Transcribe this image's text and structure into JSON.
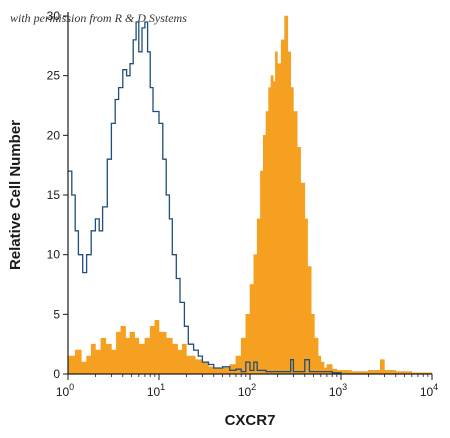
{
  "chart_data": {
    "type": "area",
    "title": "",
    "xlabel": "CXCR7",
    "ylabel": "Relative Cell Number",
    "xscale": "log",
    "xlim": [
      1,
      10000
    ],
    "ylim": [
      0,
      30
    ],
    "x_ticks": [
      {
        "value": 1,
        "base": "10",
        "exp": "0"
      },
      {
        "value": 10,
        "base": "10",
        "exp": "1"
      },
      {
        "value": 100,
        "base": "10",
        "exp": "2"
      },
      {
        "value": 1000,
        "base": "10",
        "exp": "3"
      },
      {
        "value": 10000,
        "base": "10",
        "exp": "4"
      }
    ],
    "y_ticks": [
      0,
      5,
      10,
      15,
      20,
      25,
      30
    ],
    "grid": false,
    "legend": "none",
    "annotation": "with permission from R & D Systems",
    "colors": {
      "filled_series": "#f5a020",
      "outline_series": "#1f4e79",
      "axis": "#1a1a1a"
    },
    "series": [
      {
        "style": "outline",
        "x": [
          1,
          1.1,
          1.2,
          1.3,
          1.45,
          1.6,
          1.8,
          2.0,
          2.2,
          2.4,
          2.7,
          3.0,
          3.3,
          3.6,
          4.0,
          4.4,
          4.8,
          5.2,
          5.6,
          6.0,
          6.5,
          7.0,
          7.5,
          8.0,
          8.6,
          9.3,
          10,
          11,
          12,
          13,
          14,
          15.5,
          17,
          19,
          21,
          24,
          27,
          30,
          35,
          40,
          50,
          60,
          70,
          80,
          90,
          100,
          110,
          120,
          150,
          200,
          250,
          280,
          300,
          350,
          400,
          450,
          500,
          600,
          800,
          1000
        ],
        "y": [
          17,
          15,
          12,
          10,
          8.5,
          10,
          12,
          13,
          12,
          14,
          18,
          21,
          23,
          24,
          25.5,
          25,
          26,
          28,
          29.5,
          27,
          29,
          29.5,
          27,
          24,
          22,
          22,
          21,
          18,
          15,
          13,
          10,
          8,
          6,
          4,
          2.5,
          2,
          1.5,
          1,
          0.8,
          0.5,
          0.6,
          0.3,
          0.4,
          0.2,
          1.0,
          0.3,
          1.0,
          0.3,
          0.2,
          0.2,
          0.2,
          1.2,
          0.2,
          0.2,
          1.2,
          0.2,
          0.2,
          0.2,
          0.1,
          0
        ]
      },
      {
        "style": "filled",
        "x": [
          1,
          1.2,
          1.4,
          1.6,
          1.8,
          2.0,
          2.3,
          2.6,
          3.0,
          3.4,
          3.8,
          4.3,
          4.8,
          5.4,
          6.0,
          7.0,
          8.0,
          9.0,
          10,
          12,
          14,
          16,
          18,
          20,
          25,
          30,
          35,
          40,
          50,
          60,
          70,
          80,
          90,
          100,
          110,
          120,
          130,
          140,
          150,
          160,
          170,
          180,
          190,
          200,
          220,
          240,
          260,
          280,
          300,
          330,
          360,
          400,
          430,
          470,
          510,
          560,
          600,
          650,
          700,
          800,
          900,
          1000,
          1300,
          1700,
          2000,
          2500,
          2700,
          3000,
          4000,
          6000,
          10000
        ],
        "y": [
          1.5,
          2,
          1,
          1.5,
          2.5,
          2,
          3,
          2.5,
          2,
          3.5,
          4,
          3,
          3.5,
          3,
          2.5,
          3,
          4,
          4.5,
          3.5,
          3,
          2.5,
          2,
          2.5,
          1.5,
          1.2,
          1,
          0.6,
          0.5,
          0.5,
          0.8,
          1.5,
          3,
          5,
          7.5,
          10,
          13,
          17,
          20,
          22,
          24,
          25,
          24.5,
          27,
          26,
          28,
          30,
          27,
          24,
          22,
          19,
          16,
          13,
          9,
          5,
          3,
          1.5,
          1,
          0.5,
          0.8,
          0.4,
          0.3,
          0.3,
          0.2,
          0.2,
          0.3,
          0.3,
          1.2,
          0.3,
          0.2,
          0.1,
          0
        ]
      }
    ]
  }
}
